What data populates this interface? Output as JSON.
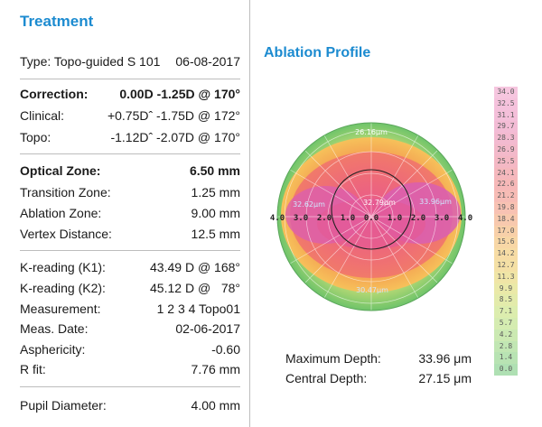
{
  "treatment": {
    "title": "Treatment",
    "type_label": "Type: Topo-guided S 101",
    "date": "06-08-2017",
    "correction": {
      "label": "Correction:",
      "value": "0.00D -1.25D @ 170°"
    },
    "clinical": {
      "label": "Clinical:",
      "value": "+0.75Dˆ -1.75D @ 172°"
    },
    "topo": {
      "label": "Topo:",
      "value": "-1.12Dˆ -2.07D @ 170°"
    },
    "optical_zone": {
      "label": "Optical Zone:",
      "value": "6.50 mm"
    },
    "transition_zone": {
      "label": "Transition Zone:",
      "value": "1.25 mm"
    },
    "ablation_zone": {
      "label": "Ablation Zone:",
      "value": "9.00 mm"
    },
    "vertex_distance": {
      "label": "Vertex Distance:",
      "value": "12.5 mm"
    },
    "k1": {
      "label": "K-reading (K1):",
      "value": "43.49 D @ 168°"
    },
    "k2": {
      "label": "K-reading (K2):",
      "value": "45.12 D @   78°"
    },
    "measurement": {
      "label": "Measurement:",
      "value": "1 2 3 4 Topo01"
    },
    "meas_date": {
      "label": "Meas. Date:",
      "value": "02-06-2017"
    },
    "asphericity": {
      "label": "Asphericity:",
      "value": "-0.60"
    },
    "r_fit": {
      "label": "R fit:",
      "value": "7.76 mm"
    },
    "pupil_diameter": {
      "label": "Pupil Diameter:",
      "value": "4.00 mm"
    }
  },
  "ablation": {
    "title": "Ablation Profile",
    "map": {
      "top_label": "26.16µm",
      "center_label": "32.79µm",
      "left_label": "32.62µm",
      "right_label": "33.96µm",
      "bottom_label": "30.47µm",
      "axis_ticks": [
        "4.0",
        "3.0",
        "2.0",
        "1.0",
        "0.0",
        "1.0",
        "2.0",
        "3.0",
        "4.0"
      ]
    },
    "max_depth": {
      "label": "Maximum Depth:",
      "value": "33.96 μm"
    },
    "central_depth": {
      "label": "Central Depth:",
      "value": "27.15 μm"
    }
  },
  "scale": [
    {
      "value": "34.0",
      "color": "#f6c6df"
    },
    {
      "value": "32.5",
      "color": "#f5c2dc"
    },
    {
      "value": "31.1",
      "color": "#f4bfd9"
    },
    {
      "value": "29.7",
      "color": "#f3bcd5"
    },
    {
      "value": "28.3",
      "color": "#f3bad0"
    },
    {
      "value": "26.9",
      "color": "#f3b9ca"
    },
    {
      "value": "25.5",
      "color": "#f4b8c4"
    },
    {
      "value": "24.1",
      "color": "#f5b8bd"
    },
    {
      "value": "22.6",
      "color": "#f6b8b8"
    },
    {
      "value": "21.2",
      "color": "#f7bcb5"
    },
    {
      "value": "19.8",
      "color": "#f8c2b3"
    },
    {
      "value": "18.4",
      "color": "#f8c9ae"
    },
    {
      "value": "17.0",
      "color": "#f8d0a9"
    },
    {
      "value": "15.6",
      "color": "#f8d7a6"
    },
    {
      "value": "14.2",
      "color": "#f7dca5"
    },
    {
      "value": "12.7",
      "color": "#f4e0a5"
    },
    {
      "value": "11.3",
      "color": "#f0e5a6"
    },
    {
      "value": "9.9",
      "color": "#eae9a8"
    },
    {
      "value": "8.5",
      "color": "#e3ebab"
    },
    {
      "value": "7.1",
      "color": "#dcedae"
    },
    {
      "value": "5.7",
      "color": "#d5ecb1"
    },
    {
      "value": "4.2",
      "color": "#cbe9b2"
    },
    {
      "value": "2.8",
      "color": "#c1e6b3"
    },
    {
      "value": "1.4",
      "color": "#b8e3b3"
    },
    {
      "value": "0.0",
      "color": "#afe0b3"
    }
  ]
}
